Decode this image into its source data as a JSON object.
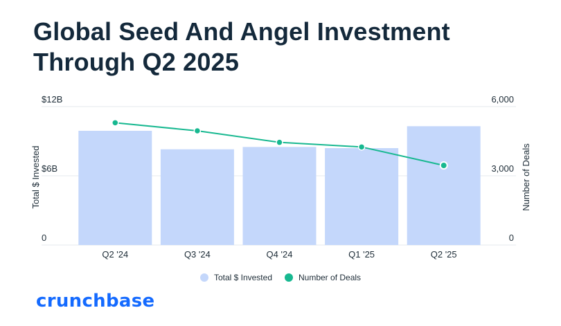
{
  "page": {
    "title_line1": "Global Seed And Angel Investment",
    "title_line2": "Through Q2 2025",
    "brand": "crunchbase"
  },
  "colors": {
    "bar": "#c4d7fb",
    "line": "#17b890",
    "grid": "#e4e8ec",
    "text": "#1c2b36",
    "brand": "#146aff",
    "title": "#14293b"
  },
  "chart_data": {
    "type": "bar",
    "categories": [
      "Q2 '24",
      "Q3 '24",
      "Q4 '24",
      "Q1 '25",
      "Q2 '25"
    ],
    "series": [
      {
        "name": "Total $ Invested",
        "kind": "bar",
        "axis": "left",
        "values": [
          9.9,
          8.3,
          8.5,
          8.4,
          10.3
        ]
      },
      {
        "name": "Number of Deals",
        "kind": "line",
        "axis": "right",
        "values": [
          5300,
          4950,
          4450,
          4250,
          3450
        ]
      }
    ],
    "left_axis": {
      "label": "Total $ Invested",
      "ticks": [
        "0",
        "$6B",
        "$12B"
      ],
      "tick_values": [
        0,
        6,
        12
      ],
      "range": [
        0,
        12
      ]
    },
    "right_axis": {
      "label": "Number of Deals",
      "ticks": [
        "0",
        "3,000",
        "6,000"
      ],
      "tick_values": [
        0,
        3000,
        6000
      ],
      "range": [
        0,
        6000
      ]
    },
    "grid": true,
    "legend_position": "bottom-center"
  }
}
